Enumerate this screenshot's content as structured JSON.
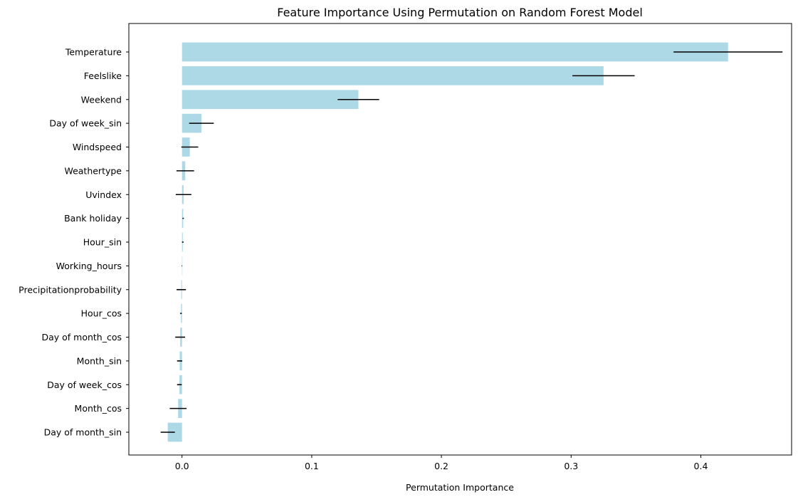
{
  "chart_data": {
    "type": "bar",
    "orientation": "horizontal",
    "title": "Feature Importance Using Permutation on Random Forest Model",
    "xlabel": "Permutation Importance",
    "ylabel": "",
    "xlim": [
      -0.041,
      0.47
    ],
    "x_ticks": [
      0.0,
      0.1,
      0.2,
      0.3,
      0.4
    ],
    "x_tick_labels": [
      "0.0",
      "0.1",
      "0.2",
      "0.3",
      "0.4"
    ],
    "grid": false,
    "legend": "none",
    "bar_color": "#add8e6",
    "error_color": "#000000",
    "categories": [
      "Temperature",
      "Feelslike",
      "Weekend",
      "Day of week_sin",
      "Windspeed",
      "Weathertype",
      "Uvindex",
      "Bank holiday",
      "Hour_sin",
      "Working_hours",
      "Precipitationprobability",
      "Hour_cos",
      "Day of month_cos",
      "Month_sin",
      "Day of week_cos",
      "Month_cos",
      "Day of month_sin"
    ],
    "values": [
      0.421,
      0.325,
      0.136,
      0.015,
      0.006,
      0.0025,
      0.0012,
      0.0009,
      0.0006,
      0.0,
      -0.0006,
      -0.0008,
      -0.0014,
      -0.0018,
      -0.002,
      -0.003,
      -0.011
    ],
    "errors": [
      0.042,
      0.024,
      0.016,
      0.0095,
      0.0065,
      0.0068,
      0.006,
      0.0005,
      0.0006,
      0.0002,
      0.0036,
      0.0006,
      0.0038,
      0.002,
      0.0018,
      0.0065,
      0.0055
    ]
  }
}
